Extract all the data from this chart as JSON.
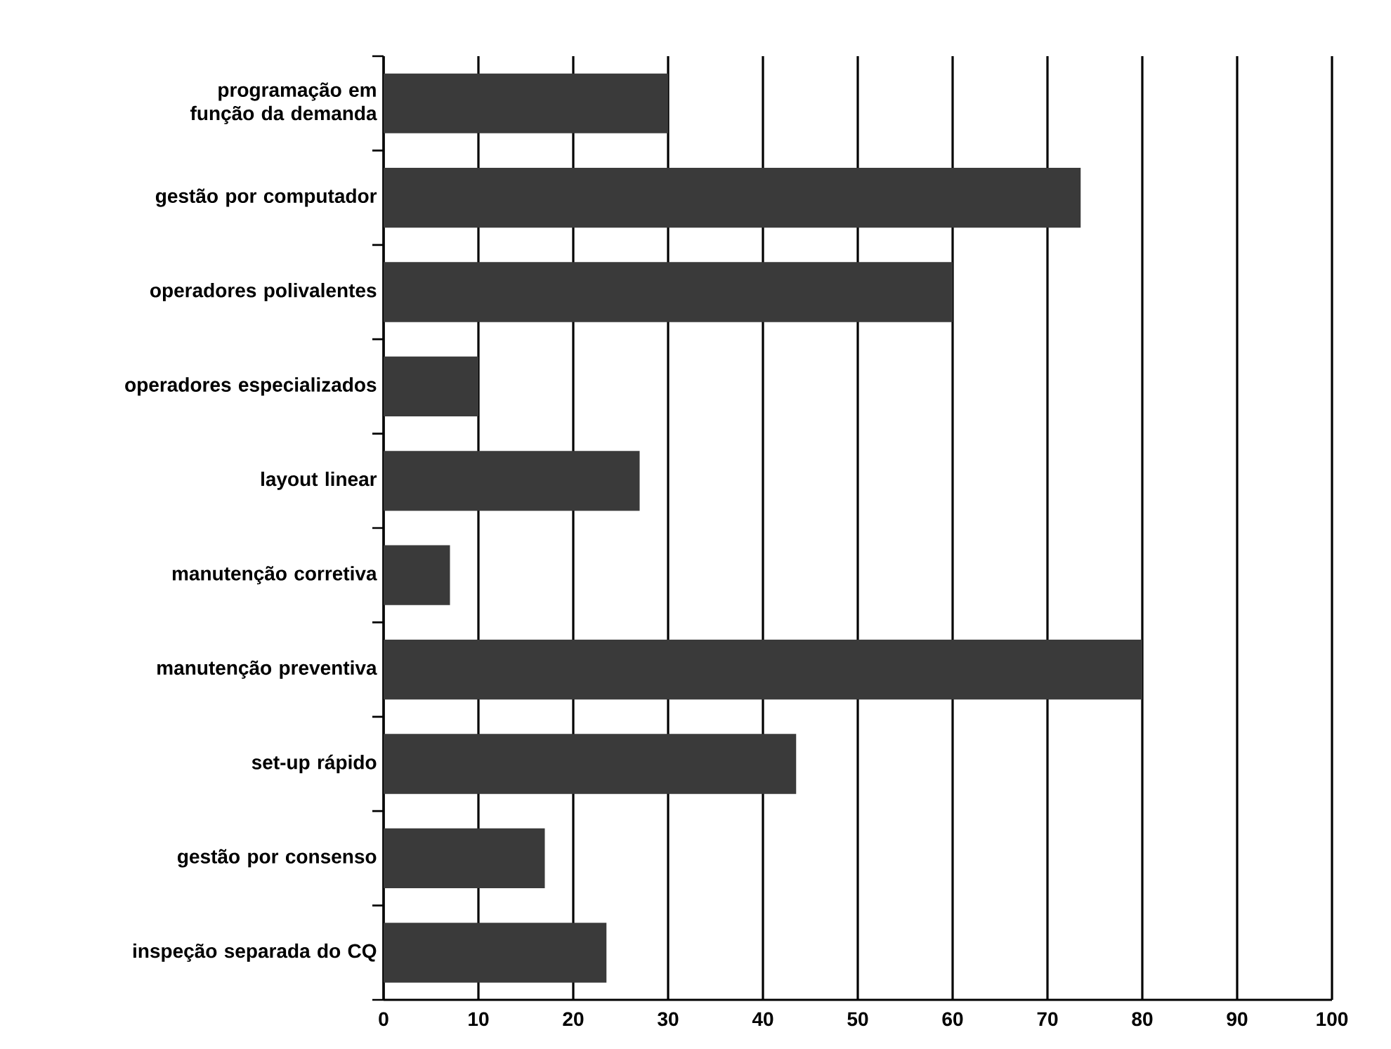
{
  "chart_data": {
    "type": "bar",
    "orientation": "horizontal",
    "categories": [
      "programação em função da demanda",
      "gestão por computador",
      "operadores polivalentes",
      "operadores especializados",
      "layout linear",
      "manutenção corretiva",
      "manutenção preventiva",
      "set-up rápido",
      "gestão por consenso",
      "inspeção separada do CQ"
    ],
    "values": [
      30,
      73.5,
      60,
      10,
      27,
      7,
      80,
      43.5,
      17,
      23.5
    ],
    "color": "#3a3a3a",
    "xlim": [
      0,
      100
    ],
    "xticks": [
      0,
      10,
      20,
      30,
      40,
      50,
      60,
      70,
      80,
      90,
      100
    ],
    "grid": "x"
  }
}
